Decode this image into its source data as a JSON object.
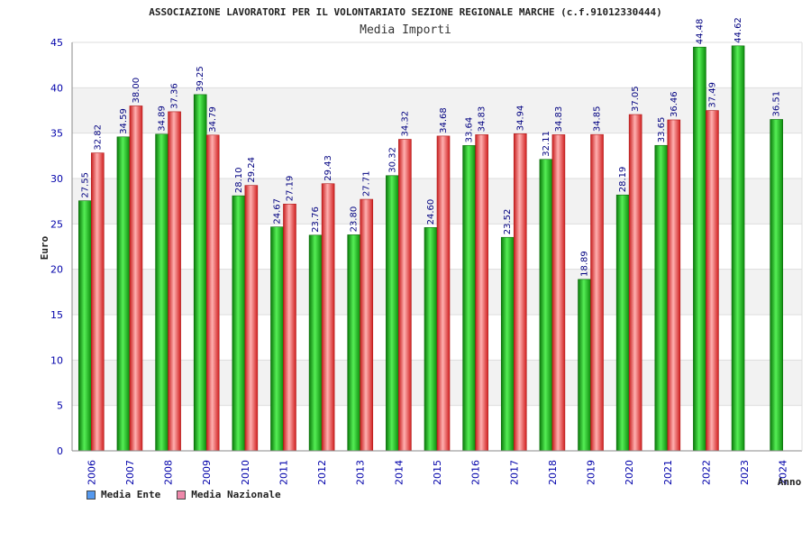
{
  "chart_data": {
    "type": "bar",
    "title": "ASSOCIAZIONE LAVORATORI PER IL VOLONTARIATO SEZIONE REGIONALE MARCHE (c.f.91012330444)",
    "subtitle": "Media Importi",
    "xlabel": "Anno",
    "ylabel": "Euro",
    "ylim": [
      0,
      45
    ],
    "yticks": [
      "0",
      "5",
      "10",
      "15",
      "20",
      "25",
      "30",
      "35",
      "40",
      "45"
    ],
    "grid": true,
    "legend_position": "bottom-left",
    "categories": [
      "2006",
      "2007",
      "2008",
      "2009",
      "2010",
      "2011",
      "2012",
      "2013",
      "2014",
      "2015",
      "2016",
      "2017",
      "2018",
      "2019",
      "2020",
      "2021",
      "2022",
      "2023",
      "2024"
    ],
    "series": [
      {
        "name": "Media Ente",
        "color": "#22bb22",
        "legend_color": "#5599ee",
        "values": [
          27.55,
          34.59,
          34.89,
          39.25,
          28.1,
          24.67,
          23.76,
          23.8,
          30.32,
          24.6,
          33.64,
          23.52,
          32.11,
          18.89,
          28.19,
          33.65,
          44.48,
          44.62,
          36.51
        ],
        "labels": [
          "27.55",
          "34.59",
          "34.89",
          "39.25",
          "28.10",
          "24.67",
          "23.76",
          "23.80",
          "30.32",
          "24.60",
          "33.64",
          "23.52",
          "32.11",
          "18.89",
          "28.19",
          "33.65",
          "44.48",
          "44.62",
          "36.51"
        ]
      },
      {
        "name": "Media Nazionale",
        "color": "#ee4444",
        "legend_color": "#ee88aa",
        "values": [
          32.82,
          38.0,
          37.36,
          34.79,
          29.24,
          27.19,
          29.43,
          27.71,
          34.32,
          34.68,
          34.83,
          34.94,
          34.83,
          34.85,
          37.05,
          36.46,
          37.49,
          null,
          null
        ],
        "labels": [
          "32.82",
          "38.00",
          "37.36",
          "34.79",
          "29.24",
          "27.19",
          "29.43",
          "27.71",
          "34.32",
          "34.68",
          "34.83",
          "34.94",
          "34.83",
          "34.85",
          "37.05",
          "36.46",
          "37.49",
          "",
          ""
        ]
      }
    ]
  }
}
